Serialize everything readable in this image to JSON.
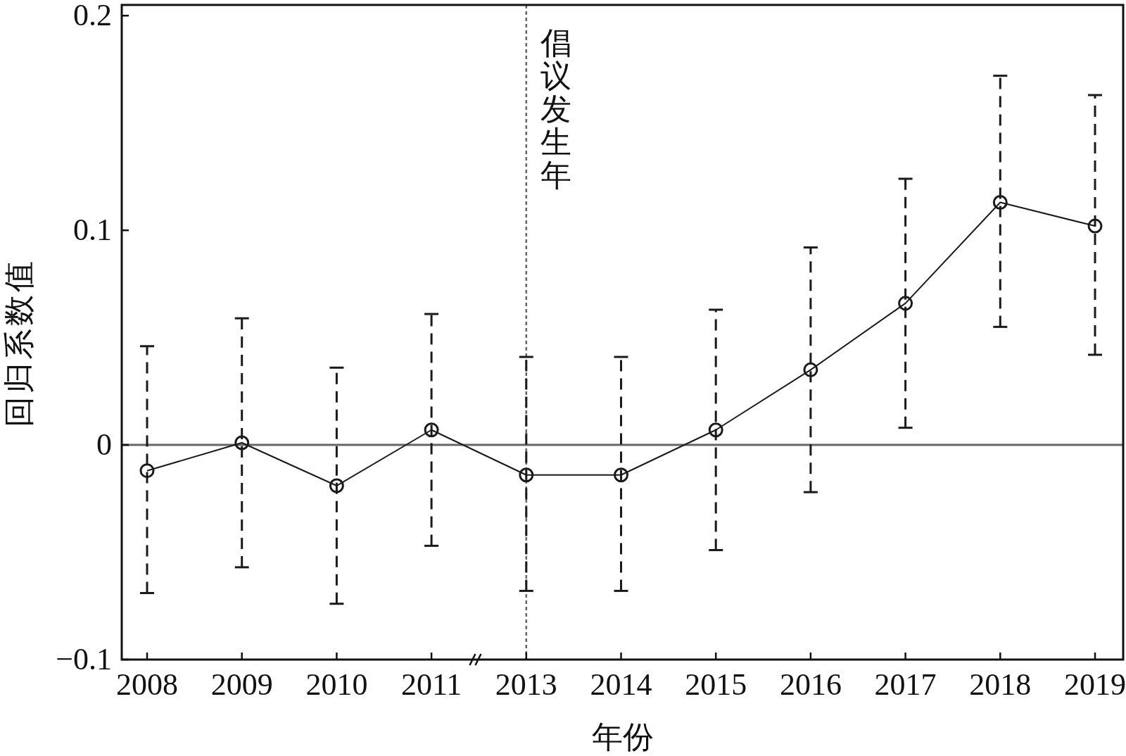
{
  "chart_data": {
    "type": "line",
    "xlabel": "年份",
    "ylabel": "回归系数值",
    "categories": [
      "2008",
      "2009",
      "2010",
      "2011",
      "2013",
      "2014",
      "2015",
      "2016",
      "2017",
      "2018",
      "2019"
    ],
    "series": [
      {
        "color": "#1a1a1a",
        "values": [
          -0.012,
          0.001,
          -0.019,
          0.007,
          -0.014,
          -0.014,
          0.007,
          0.035,
          0.066,
          0.113,
          0.102
        ],
        "errors": [
          [
            -0.069,
            0.046
          ],
          [
            -0.057,
            0.059
          ],
          [
            -0.074,
            0.036
          ],
          [
            -0.047,
            0.061
          ],
          [
            -0.068,
            0.041
          ],
          [
            -0.068,
            0.041
          ],
          [
            -0.049,
            0.063
          ],
          [
            -0.022,
            0.092
          ],
          [
            0.008,
            0.124
          ],
          [
            0.055,
            0.172
          ],
          [
            0.042,
            0.163
          ]
        ]
      }
    ],
    "ylim": [
      -0.1,
      0.205
    ],
    "yticks": [
      {
        "value": -0.1,
        "label": "−0.1"
      },
      0,
      0.1,
      0.2
    ],
    "ref_lines": [
      {
        "axis": "y",
        "value": 0,
        "label": null,
        "color": "#666666",
        "line_style": "solid"
      },
      {
        "axis": "x",
        "value": "2013",
        "label": "倡议发生年",
        "color": "#666666",
        "line_style": "dotted"
      }
    ],
    "marker": "circle",
    "line_style": "solid",
    "grid": false
  }
}
